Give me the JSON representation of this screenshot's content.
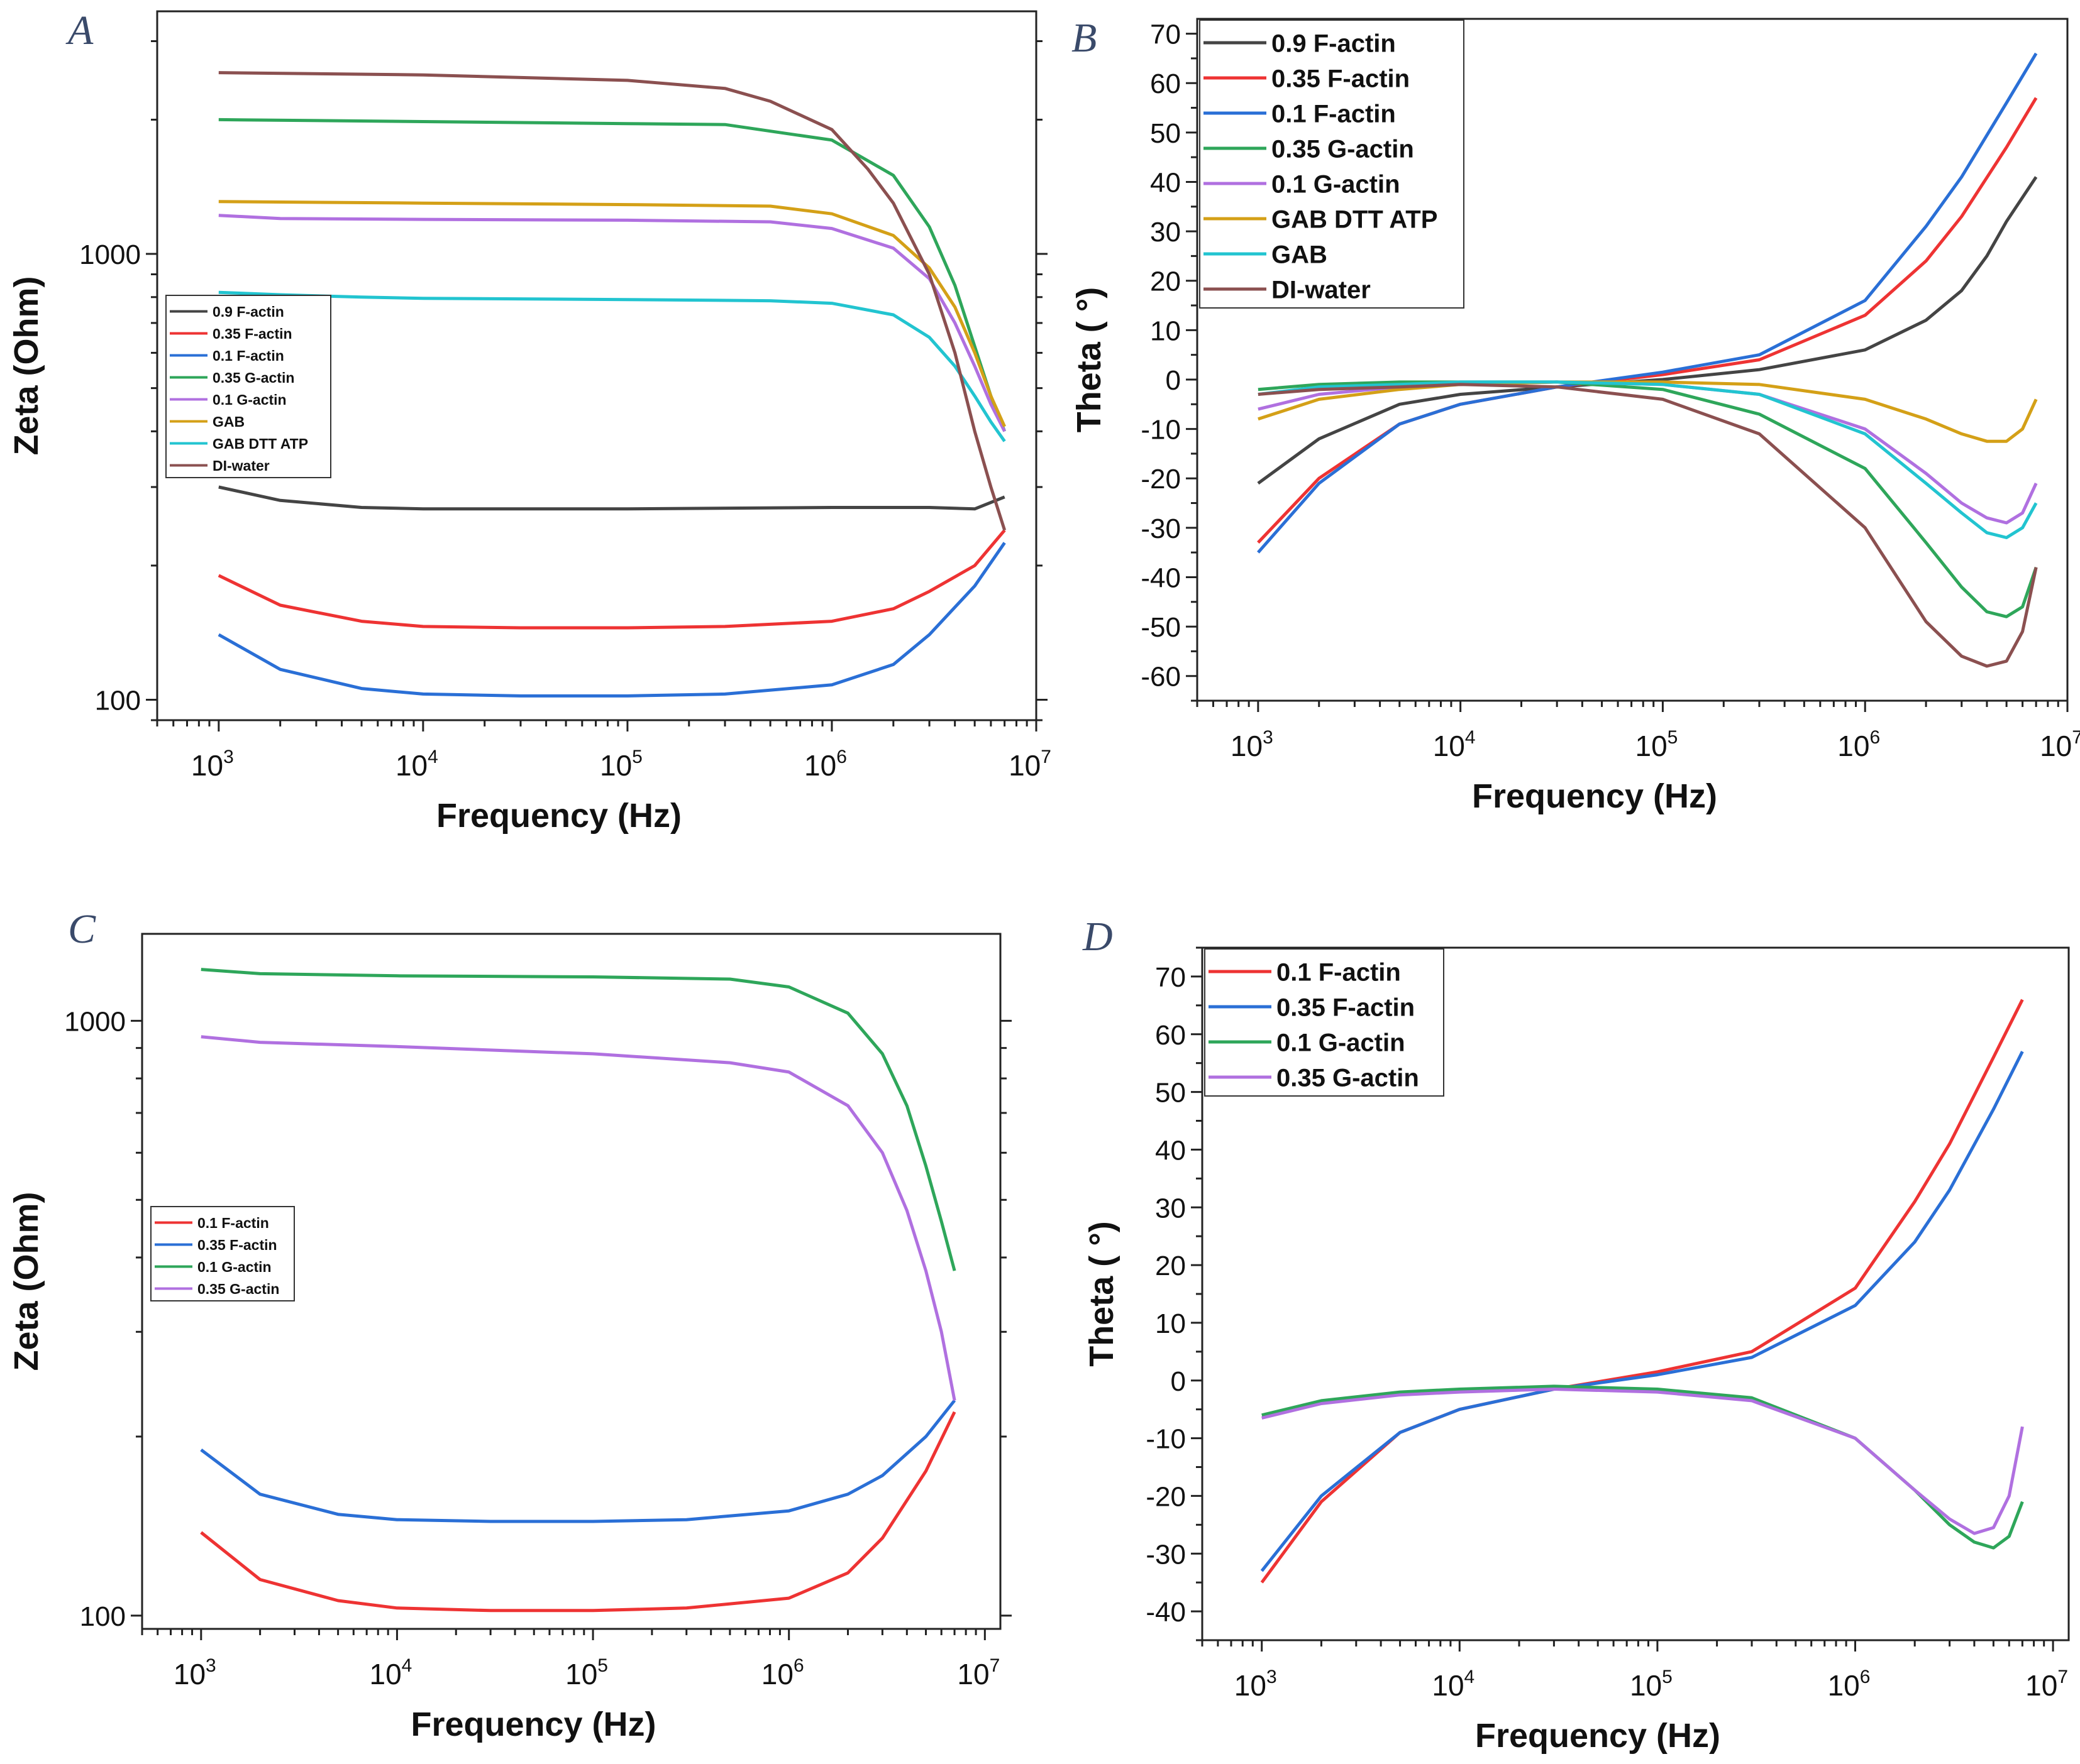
{
  "chart_data": [
    {
      "panel": "A",
      "type": "line",
      "xscale": "log",
      "yscale": "log",
      "xlabel": "Frequency (Hz)",
      "ylabel": "Zeta (Ohm)",
      "xlim": [
        500,
        10000000
      ],
      "ylim": [
        90,
        3500
      ],
      "xticks": [
        {
          "v": 1000,
          "b": "10",
          "e": "3"
        },
        {
          "v": 10000,
          "b": "10",
          "e": "4"
        },
        {
          "v": 100000,
          "b": "10",
          "e": "5"
        },
        {
          "v": 1000000,
          "b": "10",
          "e": "6"
        },
        {
          "v": 10000000,
          "b": "10",
          "e": "7"
        }
      ],
      "yticks": [
        {
          "v": 100,
          "label": "100"
        },
        {
          "v": 1000,
          "label": "1000"
        }
      ],
      "legend_position": "middle-left",
      "legend_style": "small",
      "series": [
        {
          "name": "0.9 F-actin",
          "color": "#444444",
          "x": [
            1000,
            2000,
            5000,
            10000,
            100000,
            1000000,
            3000000,
            5000000,
            7000000
          ],
          "y": [
            300,
            280,
            270,
            268,
            268,
            270,
            270,
            268,
            285
          ]
        },
        {
          "name": "0.35 F-actin",
          "color": "#ee3333",
          "x": [
            1000,
            2000,
            5000,
            10000,
            30000,
            100000,
            300000,
            1000000,
            2000000,
            3000000,
            5000000,
            7000000
          ],
          "y": [
            190,
            163,
            150,
            146,
            145,
            145,
            146,
            150,
            160,
            175,
            200,
            240
          ]
        },
        {
          "name": "0.1 F-actin",
          "color": "#2a6fd6",
          "x": [
            1000,
            2000,
            5000,
            10000,
            30000,
            100000,
            300000,
            1000000,
            2000000,
            3000000,
            5000000,
            7000000
          ],
          "y": [
            140,
            117,
            106,
            103,
            102,
            102,
            103,
            108,
            120,
            140,
            180,
            225
          ]
        },
        {
          "name": "0.35 G-actin",
          "color": "#2ea65a",
          "x": [
            1000,
            10000,
            100000,
            300000,
            1000000,
            2000000,
            3000000,
            4000000,
            5000000,
            6000000,
            7000000
          ],
          "y": [
            2000,
            1980,
            1960,
            1950,
            1800,
            1500,
            1150,
            850,
            620,
            480,
            400
          ]
        },
        {
          "name": "0.1 G-actin",
          "color": "#b070e0",
          "x": [
            1000,
            2000,
            10000,
            100000,
            500000,
            1000000,
            2000000,
            3000000,
            4000000,
            5000000,
            6000000,
            7000000
          ],
          "y": [
            1220,
            1200,
            1195,
            1190,
            1180,
            1140,
            1030,
            880,
            700,
            560,
            460,
            400
          ]
        },
        {
          "name": "GAB",
          "color": "#d4a017",
          "x": [
            1000,
            10000,
            100000,
            500000,
            1000000,
            2000000,
            3000000,
            4000000,
            5000000,
            6000000,
            7000000
          ],
          "y": [
            1310,
            1300,
            1290,
            1280,
            1230,
            1100,
            930,
            760,
            600,
            480,
            410
          ]
        },
        {
          "name": "GAB DTT ATP",
          "color": "#22c4d0",
          "x": [
            1000,
            2000,
            5000,
            10000,
            100000,
            500000,
            1000000,
            2000000,
            3000000,
            4000000,
            5000000,
            6000000,
            7000000
          ],
          "y": [
            820,
            810,
            800,
            795,
            790,
            785,
            775,
            730,
            650,
            560,
            480,
            420,
            380
          ]
        },
        {
          "name": "DI-water",
          "color": "#8b5050",
          "x": [
            1000,
            10000,
            100000,
            300000,
            500000,
            1000000,
            1500000,
            2000000,
            3000000,
            4000000,
            5000000,
            6000000,
            7000000
          ],
          "y": [
            2550,
            2520,
            2450,
            2350,
            2200,
            1900,
            1550,
            1300,
            900,
            600,
            400,
            300,
            240
          ]
        }
      ]
    },
    {
      "panel": "B",
      "type": "line",
      "xscale": "log",
      "yscale": "linear",
      "xlabel": "Frequency (Hz)",
      "ylabel": "Theta ( °)",
      "xlim": [
        500,
        10000000
      ],
      "ylim": [
        -65,
        73
      ],
      "xticks": [
        {
          "v": 1000,
          "b": "10",
          "e": "3"
        },
        {
          "v": 10000,
          "b": "10",
          "e": "4"
        },
        {
          "v": 100000,
          "b": "10",
          "e": "5"
        },
        {
          "v": 1000000,
          "b": "10",
          "e": "6"
        },
        {
          "v": 10000000,
          "b": "10",
          "e": "7"
        }
      ],
      "yticks": [
        {
          "v": -60,
          "label": "-60"
        },
        {
          "v": -50,
          "label": "-50"
        },
        {
          "v": -40,
          "label": "-40"
        },
        {
          "v": -30,
          "label": "-30"
        },
        {
          "v": -20,
          "label": "-20"
        },
        {
          "v": -10,
          "label": "-10"
        },
        {
          "v": 0,
          "label": "0"
        },
        {
          "v": 10,
          "label": "10"
        },
        {
          "v": 20,
          "label": "20"
        },
        {
          "v": 30,
          "label": "30"
        },
        {
          "v": 40,
          "label": "40"
        },
        {
          "v": 50,
          "label": "50"
        },
        {
          "v": 60,
          "label": "60"
        },
        {
          "v": 70,
          "label": "70"
        }
      ],
      "legend_position": "top-left",
      "legend_style": "large",
      "series": [
        {
          "name": "0.9 F-actin",
          "color": "#444444",
          "x": [
            1000,
            2000,
            5000,
            10000,
            30000,
            100000,
            300000,
            1000000,
            2000000,
            3000000,
            4000000,
            5000000,
            7000000
          ],
          "y": [
            -21,
            -12,
            -5,
            -3,
            -1.5,
            0,
            2,
            6,
            12,
            18,
            25,
            32,
            41
          ]
        },
        {
          "name": "0.35 F-actin",
          "color": "#ee3333",
          "x": [
            1000,
            2000,
            5000,
            10000,
            30000,
            100000,
            300000,
            1000000,
            2000000,
            3000000,
            5000000,
            7000000
          ],
          "y": [
            -33,
            -20,
            -9,
            -5,
            -1.5,
            1,
            4,
            13,
            24,
            33,
            47,
            57
          ]
        },
        {
          "name": "0.1 F-actin",
          "color": "#2a6fd6",
          "x": [
            1000,
            2000,
            5000,
            10000,
            30000,
            100000,
            300000,
            1000000,
            2000000,
            3000000,
            5000000,
            7000000
          ],
          "y": [
            -35,
            -21,
            -9,
            -5,
            -1.5,
            1.5,
            5,
            16,
            31,
            41,
            56,
            66
          ]
        },
        {
          "name": "0.35 G-actin",
          "color": "#2ea65a",
          "x": [
            1000,
            2000,
            5000,
            10000,
            30000,
            100000,
            300000,
            1000000,
            2000000,
            3000000,
            4000000,
            5000000,
            6000000,
            7000000
          ],
          "y": [
            -2,
            -1,
            -0.5,
            -0.5,
            -0.5,
            -2,
            -7,
            -18,
            -33,
            -42,
            -47,
            -48,
            -46,
            -38
          ]
        },
        {
          "name": "0.1 G-actin",
          "color": "#b070e0",
          "x": [
            1000,
            2000,
            5000,
            10000,
            30000,
            100000,
            300000,
            1000000,
            2000000,
            3000000,
            4000000,
            5000000,
            6000000,
            7000000
          ],
          "y": [
            -6,
            -3,
            -1.5,
            -1,
            -0.5,
            -1,
            -3,
            -10,
            -19,
            -25,
            -28,
            -29,
            -27,
            -21
          ]
        },
        {
          "name": "GAB DTT ATP",
          "color": "#d4a017",
          "x": [
            1000,
            2000,
            5000,
            10000,
            30000,
            100000,
            300000,
            1000000,
            2000000,
            3000000,
            4000000,
            5000000,
            6000000,
            7000000
          ],
          "y": [
            -8,
            -4,
            -2,
            -1,
            -0.5,
            -0.5,
            -1,
            -4,
            -8,
            -11,
            -12.5,
            -12.5,
            -10,
            -4
          ]
        },
        {
          "name": "GAB",
          "color": "#22c4d0",
          "x": [
            1000,
            2000,
            5000,
            10000,
            30000,
            100000,
            300000,
            1000000,
            2000000,
            3000000,
            4000000,
            5000000,
            6000000,
            7000000
          ],
          "y": [
            -3,
            -1.5,
            -1,
            -0.5,
            -0.5,
            -1,
            -3,
            -11,
            -21,
            -27,
            -31,
            -32,
            -30,
            -25
          ]
        },
        {
          "name": "DI-water",
          "color": "#8b5050",
          "x": [
            1000,
            2000,
            5000,
            10000,
            30000,
            100000,
            300000,
            1000000,
            2000000,
            3000000,
            4000000,
            5000000,
            6000000,
            7000000
          ],
          "y": [
            -3,
            -2,
            -1.5,
            -1,
            -1.5,
            -4,
            -11,
            -30,
            -49,
            -56,
            -58,
            -57,
            -51,
            -38
          ]
        }
      ]
    },
    {
      "panel": "C",
      "type": "line",
      "xscale": "log",
      "yscale": "log",
      "xlabel": "Frequency (Hz)",
      "ylabel": "Zeta (Ohm)",
      "xlim": [
        500,
        12000000
      ],
      "ylim": [
        95,
        1400
      ],
      "xticks": [
        {
          "v": 1000,
          "b": "10",
          "e": "3"
        },
        {
          "v": 10000,
          "b": "10",
          "e": "4"
        },
        {
          "v": 100000,
          "b": "10",
          "e": "5"
        },
        {
          "v": 1000000,
          "b": "10",
          "e": "6"
        },
        {
          "v": 10000000,
          "b": "10",
          "e": "7"
        }
      ],
      "yticks": [
        {
          "v": 100,
          "label": "100"
        },
        {
          "v": 1000,
          "label": "1000"
        }
      ],
      "legend_position": "middle-left",
      "legend_style": "small",
      "series": [
        {
          "name": "0.1 F-actin",
          "color": "#ee3333",
          "x": [
            1000,
            2000,
            5000,
            10000,
            30000,
            100000,
            300000,
            1000000,
            2000000,
            3000000,
            5000000,
            7000000
          ],
          "y": [
            138,
            115,
            106,
            103,
            102,
            102,
            103,
            107,
            118,
            135,
            175,
            220
          ]
        },
        {
          "name": "0.35 F-actin",
          "color": "#2a6fd6",
          "x": [
            1000,
            2000,
            5000,
            10000,
            30000,
            100000,
            300000,
            1000000,
            2000000,
            3000000,
            5000000,
            7000000
          ],
          "y": [
            190,
            160,
            148,
            145,
            144,
            144,
            145,
            150,
            160,
            172,
            200,
            230
          ]
        },
        {
          "name": "0.1 G-actin",
          "color": "#2ea65a",
          "x": [
            1000,
            2000,
            10000,
            100000,
            500000,
            1000000,
            2000000,
            3000000,
            4000000,
            5000000,
            6000000,
            7000000
          ],
          "y": [
            1220,
            1200,
            1190,
            1185,
            1175,
            1140,
            1030,
            880,
            720,
            570,
            460,
            380
          ]
        },
        {
          "name": "0.35 G-actin",
          "color": "#b070e0",
          "x": [
            1000,
            2000,
            10000,
            100000,
            500000,
            1000000,
            2000000,
            3000000,
            4000000,
            5000000,
            6000000,
            7000000
          ],
          "y": [
            940,
            920,
            905,
            880,
            850,
            820,
            720,
            600,
            480,
            380,
            300,
            230
          ]
        }
      ]
    },
    {
      "panel": "D",
      "type": "line",
      "xscale": "log",
      "yscale": "linear",
      "xlabel": "Frequency (Hz)",
      "ylabel": "Theta ( °)",
      "xlim": [
        500,
        12000000
      ],
      "ylim": [
        -45,
        75
      ],
      "xticks": [
        {
          "v": 1000,
          "b": "10",
          "e": "3"
        },
        {
          "v": 10000,
          "b": "10",
          "e": "4"
        },
        {
          "v": 100000,
          "b": "10",
          "e": "5"
        },
        {
          "v": 1000000,
          "b": "10",
          "e": "6"
        },
        {
          "v": 10000000,
          "b": "10",
          "e": "7"
        }
      ],
      "yticks": [
        {
          "v": -40,
          "label": "-40"
        },
        {
          "v": -30,
          "label": "-30"
        },
        {
          "v": -20,
          "label": "-20"
        },
        {
          "v": -10,
          "label": "-10"
        },
        {
          "v": 0,
          "label": "0"
        },
        {
          "v": 10,
          "label": "10"
        },
        {
          "v": 20,
          "label": "20"
        },
        {
          "v": 30,
          "label": "30"
        },
        {
          "v": 40,
          "label": "40"
        },
        {
          "v": 50,
          "label": "50"
        },
        {
          "v": 60,
          "label": "60"
        },
        {
          "v": 70,
          "label": "70"
        }
      ],
      "legend_position": "top-left",
      "legend_style": "large",
      "series": [
        {
          "name": "0.1 F-actin",
          "color": "#ee3333",
          "x": [
            1000,
            2000,
            5000,
            10000,
            30000,
            100000,
            300000,
            1000000,
            2000000,
            3000000,
            5000000,
            7000000
          ],
          "y": [
            -35,
            -21,
            -9,
            -5,
            -1.5,
            1.5,
            5,
            16,
            31,
            41,
            56,
            66
          ]
        },
        {
          "name": "0.35 F-actin",
          "color": "#2a6fd6",
          "x": [
            1000,
            2000,
            5000,
            10000,
            30000,
            100000,
            300000,
            1000000,
            2000000,
            3000000,
            5000000,
            7000000
          ],
          "y": [
            -33,
            -20,
            -9,
            -5,
            -1.5,
            1,
            4,
            13,
            24,
            33,
            47,
            57
          ]
        },
        {
          "name": "0.1 G-actin",
          "color": "#2ea65a",
          "x": [
            1000,
            2000,
            5000,
            10000,
            30000,
            100000,
            300000,
            1000000,
            2000000,
            3000000,
            4000000,
            5000000,
            6000000,
            7000000
          ],
          "y": [
            -6,
            -3.5,
            -2,
            -1.5,
            -1,
            -1.5,
            -3,
            -10,
            -19,
            -25,
            -28,
            -29,
            -27,
            -21
          ]
        },
        {
          "name": "0.35 G-actin",
          "color": "#b070e0",
          "x": [
            1000,
            2000,
            5000,
            10000,
            30000,
            100000,
            300000,
            1000000,
            2000000,
            3000000,
            4000000,
            5000000,
            6000000,
            7000000
          ],
          "y": [
            -6.5,
            -4,
            -2.5,
            -2,
            -1.5,
            -2,
            -3.5,
            -10,
            -19,
            -24,
            -26.5,
            -25.5,
            -20,
            -8
          ]
        }
      ]
    }
  ]
}
